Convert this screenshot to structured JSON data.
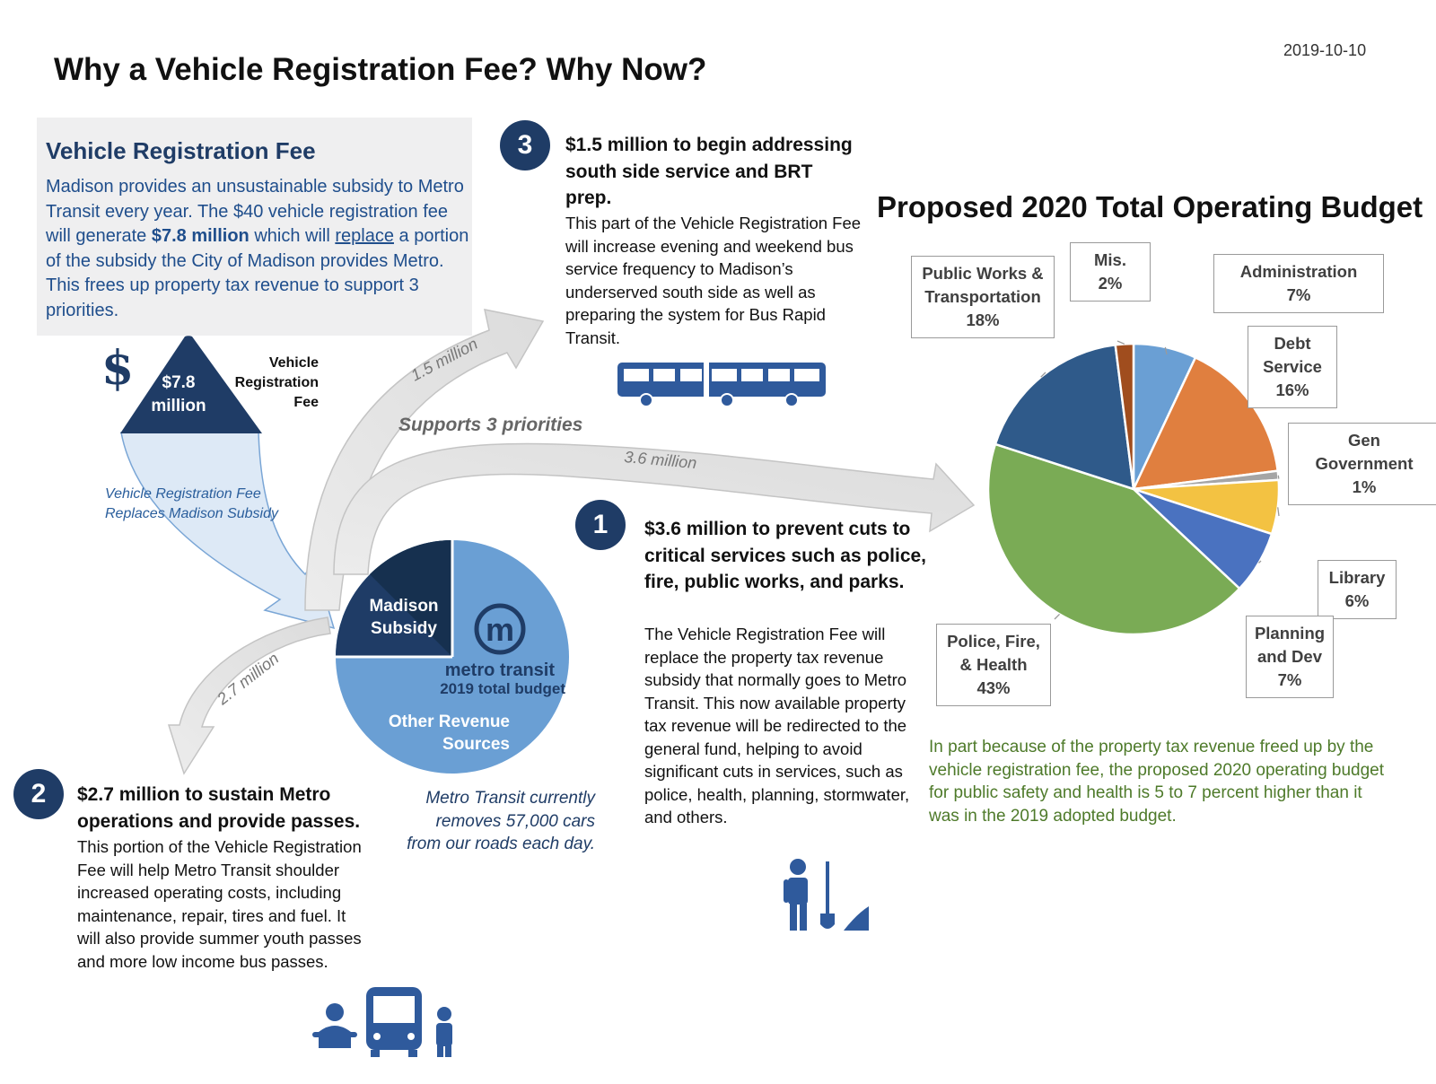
{
  "date": "2019-10-10",
  "title": "Why a Vehicle Registration Fee? Why Now?",
  "vrf_box": {
    "heading": "Vehicle Registration Fee",
    "text_1": "Madison provides an unsustainable subsidy to Metro Transit every year. The $40 vehicle registration fee will generate ",
    "highlight": "$7.8 million",
    "text_2": " which will ",
    "underlined": "replace",
    "text_3": " a portion of the subsidy the City of Madison provides Metro. This frees up property tax revenue to support 3 priorities."
  },
  "fee_triangle": {
    "dollar": "$",
    "amount_line1": "$7.8",
    "amount_line2": "million",
    "side_line1": "Vehicle",
    "side_line2": "Registration",
    "side_line3": "Fee"
  },
  "replaces_note": {
    "line1": "Vehicle Registration Fee",
    "line2": "Replaces Madison Subsidy"
  },
  "supports_label": "Supports 3 priorities",
  "arrows": {
    "a1": "1.5 million",
    "a2": "3.6 million",
    "a3": "2.7 million"
  },
  "priority_3": {
    "number": "3",
    "heading": "$1.5 million to begin addressing south side service and BRT prep.",
    "body": "This part of the Vehicle Registration Fee will  increase evening and weekend bus service frequency to Madison’s underserved south side as well as preparing the system for Bus Rapid Transit."
  },
  "priority_1": {
    "number": "1",
    "heading": "$3.6 million to prevent cuts to critical services such as police, fire, public works, and parks.",
    "body": "The  Vehicle Registration Fee will replace the property tax revenue subsidy that normally goes to Metro Transit.  This now available property tax revenue will be redirected to the general fund, helping to avoid significant cuts in services, such as police, health, planning,  stormwater, and others."
  },
  "priority_2": {
    "number": "2",
    "heading": "$2.7 million to sustain Metro operations and provide passes.",
    "body": "This portion of the Vehicle Registration Fee will help Metro Transit shoulder increased operating costs, including maintenance, repair, tires and fuel.  It will also provide summer youth passes and more low income bus passes."
  },
  "metro_pie": {
    "subsidy_line1": "Madison",
    "subsidy_line2": "Subsidy",
    "logo_letter": "m",
    "name": "metro transit",
    "budget": "2019 total budget",
    "other_line1": "Other Revenue",
    "other_line2": "Sources",
    "subsidy_color": "#1f3c66",
    "other_color": "#6a9fd4"
  },
  "cars_note": {
    "line1": "Metro Transit currently",
    "line2": "removes 57,000 cars",
    "line3": "from our roads each day."
  },
  "icons": [
    "bus-icon",
    "worker-shovel-icon",
    "mechanic-icon",
    "bus-front-icon",
    "passenger-icon",
    "metro-logo-icon"
  ],
  "chart_data": {
    "type": "pie",
    "title": "Proposed 2020 Total Operating Budget",
    "slices": [
      {
        "label_lines": [
          "Administration",
          "7%"
        ],
        "value": 7,
        "color": "#6a9fd4"
      },
      {
        "label_lines": [
          "Debt",
          "Service",
          "16%"
        ],
        "value": 16,
        "color": "#e07f3f"
      },
      {
        "label_lines": [
          "Gen",
          "Government",
          "1%"
        ],
        "value": 1,
        "color": "#a5a5a5"
      },
      {
        "label_lines": [
          "Library",
          "6%"
        ],
        "value": 6,
        "color": "#f3c242"
      },
      {
        "label_lines": [
          "Planning",
          "and Dev",
          "7%"
        ],
        "value": 7,
        "color": "#4a72c0"
      },
      {
        "label_lines": [
          "Police, Fire,",
          "& Health",
          "43%"
        ],
        "value": 43,
        "color": "#7aab55"
      },
      {
        "label_lines": [
          "Public Works &",
          "Transportation",
          "18%"
        ],
        "value": 18,
        "color": "#2f5a8a"
      },
      {
        "label_lines": [
          "Mis.",
          "2%"
        ],
        "value": 2,
        "color": "#a04d1e"
      }
    ]
  },
  "green_note": "In part because of the property tax revenue freed up by the vehicle registration fee, the proposed 2020 operating budget for public safety and health is 5 to 7 percent higher than it was in the 2019 adopted budget."
}
